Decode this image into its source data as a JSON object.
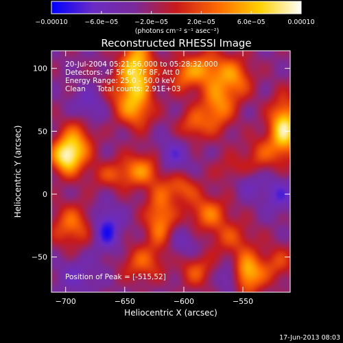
{
  "chart_data": {
    "type": "heatmap",
    "title": "Reconstructed RHESSI Image",
    "xlabel": "Heliocentric X (arcsec)",
    "ylabel": "Heliocentric Y (arcsec)",
    "xlim": [
      -712,
      -510
    ],
    "ylim": [
      -78,
      114
    ],
    "x_ticks": [
      -700,
      -650,
      -600,
      -550
    ],
    "y_ticks": [
      -50,
      0,
      50,
      100
    ],
    "x_tick_labels": [
      "−700",
      "−650",
      "−600",
      "−550"
    ],
    "y_tick_labels": [
      "−50",
      "0",
      "50",
      "100"
    ],
    "colorbar": {
      "range": [
        -0.0001,
        0.0001
      ],
      "tick_values": [
        -0.0001,
        -6e-05,
        -2e-05,
        2e-05,
        6e-05,
        0.0001
      ],
      "tick_labels": [
        "−0.00010",
        "−6.0e−05",
        "−2.0e−05",
        "2.0e−05",
        "6.0e−05",
        "0.00010"
      ],
      "unit_label": "(photons cm⁻² s⁻¹ asec⁻²)",
      "colormap": [
        "#0000ff",
        "#6a2cc4",
        "#7a2a9a",
        "#c81a1a",
        "#ff6a00",
        "#ffd000",
        "#ffffff"
      ]
    },
    "annotations": [
      "20-Jul-2004 05:21:56.000 to 05:28:32.000",
      "Detectors: 4F 5F 6F 7F 8F, Att 0",
      "Energy Range: 25.0 - 50.0 keV",
      "Clean     Total counts: 2.91E+03",
      "Position of Peak = [-515,52]"
    ],
    "grid": false,
    "sources": [
      {
        "x": -640,
        "y": 100,
        "v": 0.0001,
        "sx": 10,
        "sy": 16
      },
      {
        "x": -650,
        "y": 78,
        "v": 4e-05,
        "sx": 14,
        "sy": 12
      },
      {
        "x": -690,
        "y": 42,
        "v": 6e-05,
        "sx": 10,
        "sy": 14
      },
      {
        "x": -700,
        "y": 30,
        "v": 0.0001,
        "sx": 9,
        "sy": 10
      },
      {
        "x": -640,
        "y": 65,
        "v": 5e-05,
        "sx": 10,
        "sy": 10
      },
      {
        "x": -635,
        "y": 20,
        "v": 6e-05,
        "sx": 12,
        "sy": 10
      },
      {
        "x": -660,
        "y": 15,
        "v": 4e-05,
        "sx": 14,
        "sy": 8
      },
      {
        "x": -600,
        "y": 95,
        "v": 5e-05,
        "sx": 10,
        "sy": 10
      },
      {
        "x": -580,
        "y": 100,
        "v": 6e-05,
        "sx": 12,
        "sy": 10
      },
      {
        "x": -572,
        "y": 70,
        "v": 7e-05,
        "sx": 10,
        "sy": 14
      },
      {
        "x": -592,
        "y": 55,
        "v": 5e-05,
        "sx": 9,
        "sy": 9
      },
      {
        "x": -556,
        "y": 92,
        "v": 6e-05,
        "sx": 10,
        "sy": 12
      },
      {
        "x": -515,
        "y": 52,
        "v": 0.00011,
        "sx": 9,
        "sy": 16
      },
      {
        "x": -535,
        "y": 32,
        "v": 4e-05,
        "sx": 10,
        "sy": 10
      },
      {
        "x": -558,
        "y": 20,
        "v": 3e-05,
        "sx": 12,
        "sy": 8
      },
      {
        "x": -602,
        "y": 5,
        "v": 5e-05,
        "sx": 10,
        "sy": 8
      },
      {
        "x": -695,
        "y": -25,
        "v": 6e-05,
        "sx": 12,
        "sy": 12
      },
      {
        "x": -620,
        "y": -20,
        "v": 7e-05,
        "sx": 9,
        "sy": 18
      },
      {
        "x": -580,
        "y": -15,
        "v": 6e-05,
        "sx": 12,
        "sy": 10
      },
      {
        "x": -560,
        "y": -35,
        "v": 4e-05,
        "sx": 14,
        "sy": 10
      },
      {
        "x": -548,
        "y": -63,
        "v": 0.0001,
        "sx": 11,
        "sy": 11
      },
      {
        "x": -590,
        "y": -60,
        "v": 5e-05,
        "sx": 10,
        "sy": 10
      },
      {
        "x": -636,
        "y": -55,
        "v": 5e-05,
        "sx": 12,
        "sy": 10
      },
      {
        "x": -520,
        "y": -55,
        "v": 4e-05,
        "sx": 10,
        "sy": 10
      },
      {
        "x": -665,
        "y": -28,
        "v": -6e-05,
        "sx": 8,
        "sy": 12
      },
      {
        "x": -560,
        "y": -65,
        "v": -7e-05,
        "sx": 7,
        "sy": 9
      },
      {
        "x": -610,
        "y": 30,
        "v": -4e-05,
        "sx": 10,
        "sy": 10
      },
      {
        "x": -680,
        "y": 70,
        "v": -4e-05,
        "sx": 10,
        "sy": 10
      },
      {
        "x": -520,
        "y": 0,
        "v": -4e-05,
        "sx": 10,
        "sy": 10
      },
      {
        "x": -600,
        "y": -40,
        "v": -3e-05,
        "sx": 12,
        "sy": 10
      },
      {
        "x": -690,
        "y": -65,
        "v": -3e-05,
        "sx": 12,
        "sy": 10
      },
      {
        "x": -545,
        "y": 10,
        "v": -3e-05,
        "sx": 8,
        "sy": 8
      }
    ],
    "background_level": -2.8e-05
  },
  "footer": {
    "timestamp": "17-Jun-2013 08:03"
  }
}
